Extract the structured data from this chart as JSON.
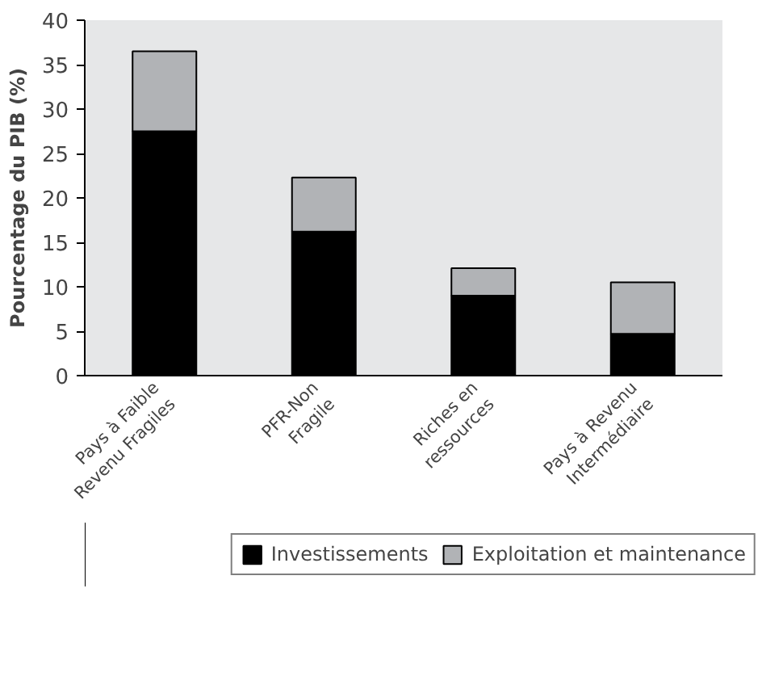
{
  "chart_data": {
    "type": "bar",
    "stacked": true,
    "ylabel": "Pourcentage du PIB (%)",
    "categories": [
      "Pays à Faible\nRevenu Fragiles",
      "PFR-Non\nFragile",
      "Riches en\nressources",
      "Pays à Revenu\nIntermédiaire"
    ],
    "series": [
      {
        "name": "Investissements",
        "color": "#000000",
        "values": [
          27.5,
          16.2,
          9.0,
          4.7
        ]
      },
      {
        "name": "Exploitation et maintenance",
        "color": "#b1b3b6",
        "values": [
          9.0,
          6.1,
          3.1,
          5.8
        ]
      }
    ],
    "ylim": [
      0,
      40
    ],
    "yticks": [
      0,
      5,
      10,
      15,
      20,
      25,
      30,
      35,
      40
    ],
    "legend": "bottom"
  }
}
